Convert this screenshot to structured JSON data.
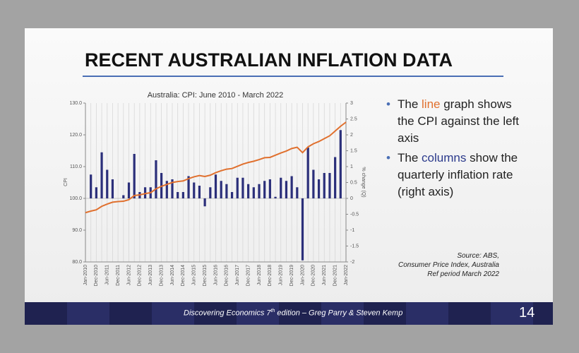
{
  "slide": {
    "title": "RECENT AUSTRALIAN INFLATION DATA",
    "bullets": [
      [
        "The ",
        "line",
        " graph shows the CPI against the left axis"
      ],
      [
        "The ",
        "columns",
        " show the quarterly inflation rate (right axis)"
      ]
    ],
    "source": [
      "Source: ABS,",
      "Consumer Price Index, Australia",
      "Ref period March 2022"
    ],
    "footer": [
      "Discovering Economics 7",
      "th",
      " edition – Greg Parry & Steven Kemp"
    ],
    "page_number": "14"
  },
  "chart_data": {
    "type": "combo",
    "title": "Australia: CPI: June 2010 - March 2022",
    "y_label": "CPI",
    "y2_label": "% change (Q)",
    "categories": [
      "Jan-2010",
      null,
      "Dec-2010",
      null,
      "Jun-2011",
      null,
      "Dec-2011",
      null,
      "Jun-2012",
      null,
      "Dec-2012",
      null,
      "Jun-2013",
      null,
      "Dec-2013",
      null,
      "Jun-2014",
      null,
      "Dec-2014",
      null,
      "Jun-2015",
      null,
      "Dec-2015",
      null,
      "Jun-2016",
      null,
      "Dec-2016",
      null,
      "Jun-2017",
      null,
      "Dec-2017",
      null,
      "Jun-2018",
      null,
      "Dec-2018",
      null,
      "Jun-2019",
      null,
      "Dec-2019",
      null,
      "Jan-2020",
      null,
      "Dec-2020",
      null,
      "Jun-2021",
      null,
      "Dec-2021",
      null,
      "Jan-2022"
    ],
    "series": [
      {
        "type": "line",
        "color": "#e0702e",
        "values": [
          95.5,
          96.0,
          96.4,
          97.5,
          98.2,
          98.8,
          99.0,
          99.1,
          99.6,
          100.9,
          101.1,
          101.5,
          101.8,
          103.0,
          103.8,
          104.4,
          105.0,
          105.3,
          105.5,
          106.2,
          106.8,
          107.2,
          106.9,
          107.3,
          108.1,
          108.7,
          109.2,
          109.4,
          110.1,
          110.8,
          111.3,
          111.7,
          112.2,
          112.8,
          112.9,
          113.6,
          114.3,
          114.9,
          115.7,
          116.1,
          114.4,
          116.2,
          117.2,
          117.9,
          118.8,
          119.7,
          121.2,
          122.7,
          124.0
        ]
      },
      {
        "type": "bar",
        "axis": "y2",
        "color": "#2b2f7a",
        "values": [
          null,
          0.75,
          0.35,
          1.45,
          0.9,
          0.6,
          0.0,
          0.1,
          0.5,
          1.4,
          0.2,
          0.35,
          0.35,
          1.2,
          0.8,
          0.55,
          0.6,
          0.2,
          0.2,
          0.7,
          0.5,
          0.4,
          -0.25,
          0.35,
          0.75,
          0.55,
          0.45,
          0.2,
          0.65,
          0.65,
          0.45,
          0.35,
          0.45,
          0.55,
          0.6,
          0.05,
          0.65,
          0.55,
          0.7,
          0.35,
          -1.95,
          1.6,
          0.9,
          0.6,
          0.8,
          0.8,
          1.3,
          2.15,
          null
        ]
      }
    ],
    "ylim": [
      80,
      130
    ],
    "yticks": [
      {
        "value": 80,
        "label": "80.0"
      },
      {
        "value": 90,
        "label": "90.0"
      },
      {
        "value": 100,
        "label": "100.0"
      },
      {
        "value": 110,
        "label": "110.0"
      },
      {
        "value": 120,
        "label": "120.0"
      },
      {
        "value": 130,
        "label": "130.0"
      }
    ],
    "y2lim": [
      -2,
      3
    ],
    "y2ticks": [
      -2,
      -1.5,
      -1,
      -0.5,
      0,
      0.5,
      1,
      1.5,
      2,
      2.5,
      3
    ],
    "grid": true
  }
}
